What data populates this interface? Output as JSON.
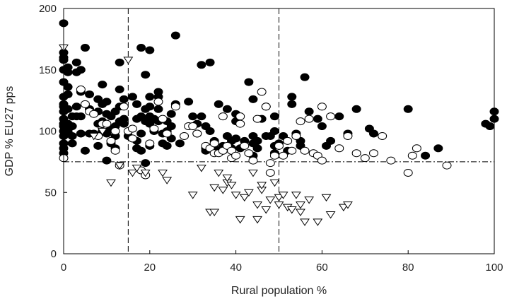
{
  "chart_data": {
    "type": "scatter",
    "title": "",
    "xlabel": "Rural population %",
    "ylabel": "GDP % EU27 pps",
    "xlim": [
      0,
      100
    ],
    "ylim": [
      0,
      200
    ],
    "x_ticks": [
      "0",
      "20",
      "40",
      "60",
      "80",
      "100"
    ],
    "y_ticks": [
      "0",
      "50",
      "100",
      "150",
      "200"
    ],
    "grid": false,
    "reference_lines": [
      {
        "orientation": "vertical",
        "value": 15,
        "style": "dashed"
      },
      {
        "orientation": "vertical",
        "value": 50,
        "style": "dashed"
      },
      {
        "orientation": "horizontal",
        "value": 75,
        "style": "dash-dot"
      }
    ],
    "series": [
      {
        "marker": "filled-circle",
        "color": "#000000",
        "points": [
          [
            0,
            188
          ],
          [
            0,
            164
          ],
          [
            0,
            160
          ],
          [
            0,
            158
          ],
          [
            0,
            150
          ],
          [
            0,
            140
          ],
          [
            0,
            128
          ],
          [
            0,
            122
          ],
          [
            0,
            120
          ],
          [
            0,
            116
          ],
          [
            0,
            110
          ],
          [
            0,
            106
          ],
          [
            0,
            104
          ],
          [
            0,
            100
          ],
          [
            0,
            96
          ],
          [
            0,
            90
          ],
          [
            0,
            86
          ],
          [
            0,
            82
          ],
          [
            1,
            152
          ],
          [
            1,
            148
          ],
          [
            1,
            136
          ],
          [
            1,
            130
          ],
          [
            1,
            118
          ],
          [
            1,
            106
          ],
          [
            1,
            100
          ],
          [
            2,
            112
          ],
          [
            2,
            104
          ],
          [
            2,
            96
          ],
          [
            2,
            90
          ],
          [
            3,
            156
          ],
          [
            3,
            148
          ],
          [
            3,
            120
          ],
          [
            3,
            112
          ],
          [
            4,
            150
          ],
          [
            4,
            132
          ],
          [
            4,
            112
          ],
          [
            4,
            98
          ],
          [
            5,
            168
          ],
          [
            5,
            84
          ],
          [
            6,
            130
          ],
          [
            6,
            118
          ],
          [
            6,
            98
          ],
          [
            7,
            98
          ],
          [
            8,
            126
          ],
          [
            8,
            116
          ],
          [
            8,
            106
          ],
          [
            8,
            88
          ],
          [
            9,
            138
          ],
          [
            9,
            122
          ],
          [
            9,
            108
          ],
          [
            9,
            100
          ],
          [
            10,
            124
          ],
          [
            10,
            114
          ],
          [
            10,
            98
          ],
          [
            10,
            76
          ],
          [
            11,
            112
          ],
          [
            11,
            102
          ],
          [
            11,
            90
          ],
          [
            12,
            116
          ],
          [
            12,
            104
          ],
          [
            12,
            96
          ],
          [
            12,
            86
          ],
          [
            13,
            156
          ],
          [
            13,
            134
          ],
          [
            13,
            120
          ],
          [
            13,
            108
          ],
          [
            14,
            126
          ],
          [
            14,
            110
          ],
          [
            14,
            106
          ],
          [
            15,
            96
          ],
          [
            16,
            128
          ],
          [
            17,
            122
          ],
          [
            17,
            110
          ],
          [
            17,
            92
          ],
          [
            17,
            86
          ],
          [
            18,
            168
          ],
          [
            18,
            112
          ],
          [
            18,
            98
          ],
          [
            18,
            84
          ],
          [
            19,
            146
          ],
          [
            19,
            118
          ],
          [
            19,
            108
          ],
          [
            19,
            74
          ],
          [
            20,
            166
          ],
          [
            20,
            128
          ],
          [
            20,
            120
          ],
          [
            20,
            112
          ],
          [
            20,
            106
          ],
          [
            20,
            88
          ],
          [
            21,
            110
          ],
          [
            21,
            100
          ],
          [
            22,
            132
          ],
          [
            22,
            128
          ],
          [
            22,
            118
          ],
          [
            22,
            108
          ],
          [
            23,
            98
          ],
          [
            23,
            90
          ],
          [
            24,
            108
          ],
          [
            24,
            100
          ],
          [
            24,
            88
          ],
          [
            25,
            114
          ],
          [
            25,
            104
          ],
          [
            25,
            94
          ],
          [
            26,
            178
          ],
          [
            26,
            122
          ],
          [
            27,
            90
          ],
          [
            29,
            124
          ],
          [
            30,
            112
          ],
          [
            31,
            106
          ],
          [
            31,
            98
          ],
          [
            32,
            154
          ],
          [
            32,
            112
          ],
          [
            33,
            104
          ],
          [
            33,
            86
          ],
          [
            33,
            84
          ],
          [
            34,
            156
          ],
          [
            34,
            100
          ],
          [
            35,
            92
          ],
          [
            35,
            86
          ],
          [
            36,
            122
          ],
          [
            36,
            84
          ],
          [
            37,
            88
          ],
          [
            37,
            84
          ],
          [
            38,
            118
          ],
          [
            38,
            96
          ],
          [
            39,
            92
          ],
          [
            39,
            86
          ],
          [
            40,
            94
          ],
          [
            40,
            114
          ],
          [
            40,
            108
          ],
          [
            41,
            86
          ],
          [
            42,
            92
          ],
          [
            43,
            140
          ],
          [
            44,
            126
          ],
          [
            44,
            96
          ],
          [
            44,
            90
          ],
          [
            44,
            80
          ],
          [
            45,
            92
          ],
          [
            45,
            86
          ],
          [
            46,
            110
          ],
          [
            47,
            96
          ],
          [
            47,
            120
          ],
          [
            48,
            96
          ],
          [
            49,
            112
          ],
          [
            49,
            100
          ],
          [
            49,
            88
          ],
          [
            49,
            82
          ],
          [
            50,
            90
          ],
          [
            51,
            96
          ],
          [
            52,
            84
          ],
          [
            53,
            128
          ],
          [
            53,
            122
          ],
          [
            54,
            98
          ],
          [
            55,
            92
          ],
          [
            55,
            88
          ],
          [
            56,
            144
          ],
          [
            57,
            116
          ],
          [
            59,
            110
          ],
          [
            60,
            104
          ],
          [
            61,
            88
          ],
          [
            62,
            92
          ],
          [
            64,
            112
          ],
          [
            66,
            98
          ],
          [
            68,
            118
          ],
          [
            71,
            102
          ],
          [
            72,
            98
          ],
          [
            80,
            118
          ],
          [
            84,
            80
          ],
          [
            87,
            86
          ],
          [
            98,
            106
          ],
          [
            99,
            104
          ],
          [
            100,
            116
          ],
          [
            100,
            110
          ]
        ]
      },
      {
        "marker": "open-circle",
        "color": "#000000",
        "points": [
          [
            0,
            78
          ],
          [
            4,
            134
          ],
          [
            5,
            122
          ],
          [
            6,
            116
          ],
          [
            7,
            114
          ],
          [
            8,
            96
          ],
          [
            9,
            106
          ],
          [
            10,
            106
          ],
          [
            11,
            92
          ],
          [
            12,
            100
          ],
          [
            12,
            84
          ],
          [
            13,
            72
          ],
          [
            14,
            120
          ],
          [
            15,
            100
          ],
          [
            16,
            94
          ],
          [
            16,
            102
          ],
          [
            18,
            68
          ],
          [
            19,
            64
          ],
          [
            20,
            90
          ],
          [
            21,
            102
          ],
          [
            22,
            124
          ],
          [
            23,
            110
          ],
          [
            24,
            98
          ],
          [
            26,
            120
          ],
          [
            28,
            96
          ],
          [
            29,
            104
          ],
          [
            30,
            104
          ],
          [
            31,
            98
          ],
          [
            33,
            88
          ],
          [
            34,
            86
          ],
          [
            35,
            90
          ],
          [
            35,
            82
          ],
          [
            36,
            82
          ],
          [
            37,
            84
          ],
          [
            37,
            112
          ],
          [
            38,
            88
          ],
          [
            39,
            84
          ],
          [
            39,
            78
          ],
          [
            40,
            80
          ],
          [
            41,
            112
          ],
          [
            41,
            106
          ],
          [
            42,
            88
          ],
          [
            43,
            82
          ],
          [
            44,
            76
          ],
          [
            45,
            110
          ],
          [
            46,
            132
          ],
          [
            47,
            120
          ],
          [
            48,
            66
          ],
          [
            48,
            74
          ],
          [
            49,
            80
          ],
          [
            50,
            88
          ],
          [
            51,
            80
          ],
          [
            52,
            92
          ],
          [
            53,
            84
          ],
          [
            54,
            96
          ],
          [
            55,
            108
          ],
          [
            56,
            84
          ],
          [
            57,
            110
          ],
          [
            58,
            82
          ],
          [
            59,
            80
          ],
          [
            60,
            76
          ],
          [
            60,
            120
          ],
          [
            62,
            112
          ],
          [
            64,
            86
          ],
          [
            66,
            96
          ],
          [
            68,
            82
          ],
          [
            70,
            78
          ],
          [
            72,
            82
          ],
          [
            74,
            96
          ],
          [
            76,
            76
          ],
          [
            80,
            66
          ],
          [
            81,
            80
          ],
          [
            82,
            86
          ],
          [
            89,
            72
          ]
        ]
      },
      {
        "marker": "open-triangle-down",
        "color": "#000000",
        "points": [
          [
            0,
            168
          ],
          [
            7,
            96
          ],
          [
            9,
            100
          ],
          [
            11,
            58
          ],
          [
            13,
            72
          ],
          [
            15,
            158
          ],
          [
            16,
            66
          ],
          [
            17,
            70
          ],
          [
            19,
            66
          ],
          [
            23,
            66
          ],
          [
            24,
            60
          ],
          [
            30,
            48
          ],
          [
            32,
            70
          ],
          [
            34,
            34
          ],
          [
            35,
            34
          ],
          [
            35,
            54
          ],
          [
            36,
            66
          ],
          [
            37,
            52
          ],
          [
            38,
            58
          ],
          [
            38,
            62
          ],
          [
            39,
            56
          ],
          [
            40,
            48
          ],
          [
            41,
            28
          ],
          [
            42,
            46
          ],
          [
            43,
            50
          ],
          [
            44,
            66
          ],
          [
            45,
            40
          ],
          [
            45,
            28
          ],
          [
            46,
            52
          ],
          [
            46,
            56
          ],
          [
            47,
            36
          ],
          [
            48,
            44
          ],
          [
            49,
            58
          ],
          [
            50,
            46
          ],
          [
            50,
            40
          ],
          [
            51,
            48
          ],
          [
            52,
            38
          ],
          [
            53,
            36
          ],
          [
            54,
            48
          ],
          [
            55,
            34
          ],
          [
            55,
            40
          ],
          [
            56,
            26
          ],
          [
            57,
            44
          ],
          [
            59,
            26
          ],
          [
            61,
            46
          ],
          [
            62,
            32
          ],
          [
            65,
            38
          ],
          [
            66,
            40
          ]
        ]
      }
    ]
  }
}
